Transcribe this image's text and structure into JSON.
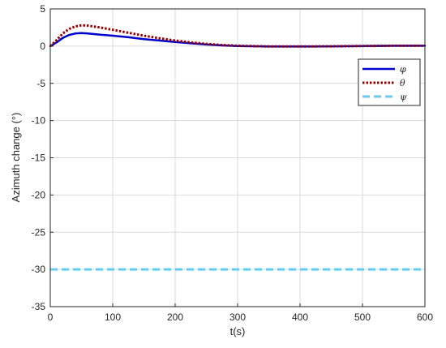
{
  "chart_data": {
    "type": "line",
    "title": "",
    "xlabel": "t(s)",
    "ylabel": "Azimuth change (°)",
    "xlim": [
      0,
      600
    ],
    "ylim": [
      -35,
      5
    ],
    "xticks": [
      0,
      100,
      200,
      300,
      400,
      500,
      600
    ],
    "yticks": [
      5,
      0,
      -5,
      -10,
      -15,
      -20,
      -25,
      -30,
      -35
    ],
    "grid": true,
    "legend_position": "top-right",
    "series": [
      {
        "name": "φ",
        "color": "#0000cc",
        "style": "solid",
        "x": [
          0,
          10,
          20,
          30,
          40,
          50,
          60,
          80,
          100,
          125,
          150,
          175,
          200,
          225,
          250,
          275,
          300,
          350,
          400,
          450,
          500,
          550,
          600
        ],
        "y": [
          0,
          0.5,
          1.1,
          1.5,
          1.7,
          1.75,
          1.7,
          1.55,
          1.4,
          1.2,
          0.95,
          0.75,
          0.55,
          0.38,
          0.22,
          0.1,
          0.02,
          -0.05,
          -0.05,
          -0.02,
          0.02,
          0.05,
          0.05
        ]
      },
      {
        "name": "θ",
        "color": "#990000",
        "style": "dotted",
        "x": [
          0,
          10,
          20,
          30,
          40,
          50,
          60,
          80,
          100,
          125,
          150,
          175,
          200,
          225,
          250,
          275,
          300,
          350,
          400,
          450,
          500,
          550,
          600
        ],
        "y": [
          0,
          0.8,
          1.7,
          2.3,
          2.65,
          2.8,
          2.75,
          2.5,
          2.2,
          1.8,
          1.4,
          1.05,
          0.75,
          0.5,
          0.3,
          0.15,
          0.05,
          -0.05,
          -0.05,
          -0.02,
          0.02,
          0.05,
          0.05
        ]
      },
      {
        "name": "ψ",
        "color": "#66ccee",
        "style": "dashed",
        "x": [
          0,
          100,
          200,
          300,
          400,
          500,
          600
        ],
        "y": [
          -30,
          -30,
          -30,
          -30,
          -30,
          -30,
          -30
        ]
      }
    ]
  }
}
